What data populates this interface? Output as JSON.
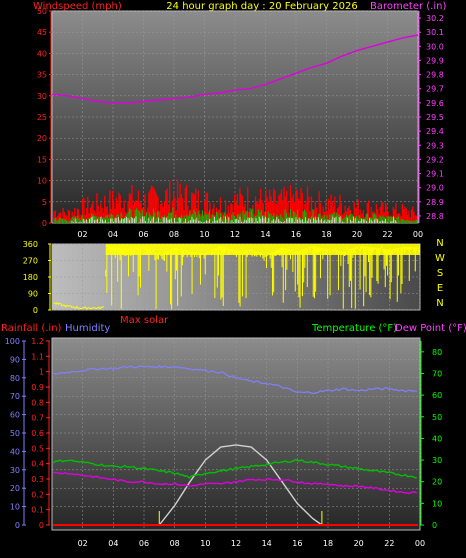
{
  "header": {
    "left_title": "Windspeed (mph)",
    "center_title": "24 hour graph day : 20 February 2026",
    "right_title": "Barometer (.in)"
  },
  "colors": {
    "windspeed": "#ff0000",
    "gust_avg": "#00c000",
    "barometer": "#e000e0",
    "direction": "#ffff00",
    "humidity": "#8080ff",
    "rainfall": "#ff0000",
    "temperature": "#00c000",
    "dewpoint": "#e000e0",
    "solar": "#d0d0d0",
    "label_red": "#ff2020",
    "label_magenta": "#ff40ff",
    "label_yellow": "#ffff00",
    "label_green": "#00ff00",
    "label_blue": "#8080ff"
  },
  "hour_labels": [
    "02",
    "04",
    "06",
    "08",
    "10",
    "12",
    "14",
    "16",
    "18",
    "20",
    "22",
    "00"
  ],
  "compass": [
    "N",
    "W",
    "S",
    "E",
    "N"
  ],
  "chart_data": [
    {
      "id": "wind",
      "type": "line",
      "ylabel_left": "Windspeed (mph)",
      "ylabel_right": "Barometer (.in)",
      "left_ticks": [
        0,
        5,
        10,
        15,
        20,
        25,
        30,
        35,
        40,
        45,
        50
      ],
      "right_ticks": [
        28.8,
        28.9,
        29.0,
        29.1,
        29.2,
        29.3,
        29.4,
        29.5,
        29.6,
        29.7,
        29.8,
        29.9,
        30.0,
        30.1,
        30.2
      ],
      "left_ylim": [
        0,
        50
      ],
      "right_ylim": [
        28.75,
        30.25
      ],
      "barometer": {
        "x": [
          0,
          1,
          2,
          3,
          4,
          5,
          6,
          7,
          8,
          9,
          10,
          11,
          12,
          13,
          14,
          15,
          16,
          17,
          18,
          19,
          20,
          21,
          22,
          23,
          24
        ],
        "values": [
          29.66,
          29.65,
          29.63,
          29.61,
          29.6,
          29.6,
          29.61,
          29.62,
          29.63,
          29.64,
          29.66,
          29.67,
          29.69,
          29.7,
          29.73,
          29.77,
          29.81,
          29.85,
          29.88,
          29.93,
          29.97,
          30.0,
          30.03,
          30.06,
          30.08
        ]
      },
      "wind_avg": {
        "x": [
          0,
          1,
          2,
          3,
          4,
          5,
          6,
          7,
          8,
          9,
          10,
          11,
          12,
          13,
          14,
          15,
          16,
          17,
          18,
          19,
          20,
          21,
          22,
          23,
          24
        ],
        "values": [
          1.5,
          1.0,
          1.8,
          2.0,
          2.5,
          3.0,
          2.8,
          3.0,
          3.2,
          2.8,
          3.0,
          2.5,
          2.8,
          3.0,
          2.7,
          2.6,
          3.0,
          2.8,
          2.5,
          2.0,
          1.8,
          2.0,
          1.6,
          1.2,
          1.0
        ]
      },
      "wind_gust": {
        "x": [
          0,
          1,
          2,
          3,
          4,
          5,
          6,
          7,
          8,
          9,
          10,
          11,
          12,
          13,
          14,
          15,
          16,
          17,
          18,
          19,
          20,
          21,
          22,
          23,
          24
        ],
        "values": [
          4,
          3,
          5,
          6,
          7,
          8,
          7,
          8,
          9,
          8,
          7,
          6,
          7,
          8,
          7,
          7,
          8,
          7,
          6,
          6,
          5,
          5,
          4,
          4,
          3
        ]
      }
    },
    {
      "id": "direction",
      "type": "line",
      "left_ticks": [
        0,
        90,
        180,
        270,
        360
      ],
      "ylim": [
        0,
        360
      ],
      "x": [
        0,
        0.5,
        1,
        1.5,
        2,
        2.5,
        3,
        3.4,
        3.6,
        4,
        5,
        6,
        7,
        8,
        9,
        10,
        11,
        12,
        13,
        14,
        15,
        16,
        17,
        18,
        19,
        20,
        21,
        22,
        23,
        24
      ],
      "values": [
        40,
        30,
        20,
        15,
        10,
        12,
        10,
        15,
        350,
        340,
        330,
        345,
        300,
        340,
        320,
        310,
        350,
        320,
        330,
        300,
        340,
        320,
        350,
        330,
        320,
        350,
        340,
        330,
        345,
        340
      ]
    },
    {
      "id": "temp",
      "type": "line",
      "left_label": "Rainfall (.in)",
      "left_label2": "Humidity",
      "right_label": "Temperature (°F)",
      "right_label2": "Dew Point (°F)",
      "bottom_label": "Max solar",
      "humidity_ticks": [
        0,
        10,
        20,
        30,
        40,
        50,
        60,
        70,
        80,
        90,
        100
      ],
      "rain_ticks": [
        "0",
        "0.1",
        "0.2",
        "0.3",
        "0.4",
        "0.5",
        "0.6",
        "0.7",
        "0.8",
        "0.9",
        "1",
        "1.1",
        "1.2"
      ],
      "temp_ticks": [
        0,
        10,
        20,
        30,
        40,
        50,
        60,
        70,
        80
      ],
      "humidity_ylim": [
        0,
        100
      ],
      "temp_ylim": [
        0,
        85
      ],
      "humidity": {
        "x": [
          0,
          1,
          2,
          3,
          4,
          5,
          6,
          7,
          8,
          9,
          10,
          11,
          12,
          13,
          14,
          15,
          16,
          17,
          18,
          19,
          20,
          21,
          22,
          23,
          24
        ],
        "values": [
          82,
          83,
          84,
          85,
          85,
          86,
          86,
          86,
          86,
          85,
          84,
          83,
          80,
          78,
          77,
          75,
          72,
          72,
          73,
          74,
          73,
          74,
          74,
          73,
          73
        ]
      },
      "temperature": {
        "x": [
          0,
          1,
          2,
          3,
          4,
          5,
          6,
          7,
          8,
          9,
          10,
          11,
          12,
          13,
          14,
          15,
          16,
          17,
          18,
          19,
          20,
          21,
          22,
          23,
          24
        ],
        "values": [
          29,
          30,
          29,
          28,
          27,
          27,
          26,
          25,
          24,
          22,
          24,
          25,
          26,
          27,
          28,
          29,
          30,
          29,
          28,
          27,
          26,
          25,
          24,
          23,
          22
        ]
      },
      "dewpoint": {
        "x": [
          0,
          1,
          2,
          3,
          4,
          5,
          6,
          7,
          8,
          9,
          10,
          11,
          12,
          13,
          14,
          15,
          16,
          17,
          18,
          19,
          20,
          21,
          22,
          23,
          24
        ],
        "values": [
          24,
          24,
          23,
          22,
          21,
          20,
          20,
          19,
          19,
          18,
          19,
          19,
          20,
          21,
          21,
          21,
          20,
          19,
          19,
          18,
          18,
          17,
          16,
          15,
          15
        ]
      },
      "solar": {
        "x": [
          7.0,
          8,
          9,
          10,
          11,
          12,
          13,
          14,
          15,
          16,
          17,
          17.6
        ],
        "values": [
          0,
          9,
          20,
          30,
          36,
          37,
          36,
          30,
          20,
          10,
          3,
          0
        ]
      }
    }
  ]
}
